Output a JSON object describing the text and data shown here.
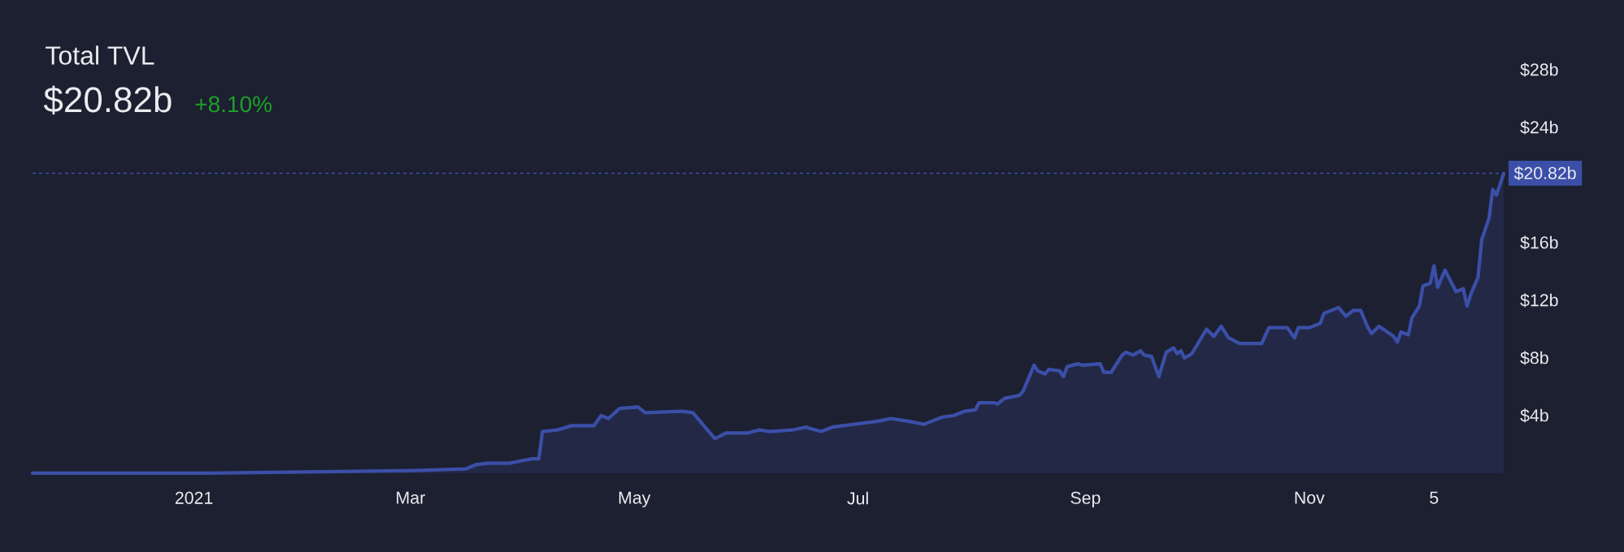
{
  "chart_data": {
    "type": "area",
    "title": "Total TVL",
    "subtitle": "$20.82b",
    "annotations": [
      "+8.10%"
    ],
    "x": [
      "2020-11-18",
      "2021-01-01",
      "2021-02-05",
      "2021-03-04",
      "2021-03-16",
      "2021-03-19",
      "2021-03-22",
      "2021-03-28",
      "2021-04-03",
      "2021-04-05",
      "2021-04-06",
      "2021-04-10",
      "2021-04-14",
      "2021-04-20",
      "2021-04-22",
      "2021-04-24",
      "2021-04-27",
      "2021-05-02",
      "2021-05-04",
      "2021-05-14",
      "2021-05-17",
      "2021-05-19",
      "2021-05-23",
      "2021-05-26",
      "2021-06-01",
      "2021-06-04",
      "2021-06-07",
      "2021-06-13",
      "2021-06-17",
      "2021-06-18",
      "2021-06-21",
      "2021-06-24",
      "2021-06-30",
      "2021-07-06",
      "2021-07-10",
      "2021-07-15",
      "2021-07-19",
      "2021-07-24",
      "2021-07-27",
      "2021-07-30",
      "2021-08-02",
      "2021-08-03",
      "2021-08-07",
      "2021-08-08",
      "2021-08-10",
      "2021-08-14",
      "2021-08-15",
      "2021-08-18",
      "2021-08-19",
      "2021-08-21",
      "2021-08-22",
      "2021-08-25",
      "2021-08-26",
      "2021-08-27",
      "2021-08-30",
      "2021-08-31",
      "2021-09-05",
      "2021-09-06",
      "2021-09-08",
      "2021-09-11",
      "2021-09-12",
      "2021-09-14",
      "2021-09-16",
      "2021-09-17",
      "2021-09-19",
      "2021-09-21",
      "2021-09-23",
      "2021-09-25",
      "2021-09-26",
      "2021-09-27",
      "2021-09-28",
      "2021-09-30",
      "2021-10-04",
      "2021-10-06",
      "2021-10-08",
      "2021-10-10",
      "2021-10-13",
      "2021-10-19",
      "2021-10-21",
      "2021-10-24",
      "2021-10-26",
      "2021-10-28",
      "2021-10-29",
      "2021-11-01",
      "2021-11-04",
      "2021-11-05",
      "2021-11-08",
      "2021-11-09",
      "2021-11-11",
      "2021-11-13",
      "2021-11-15",
      "2021-11-17",
      "2021-11-18",
      "2021-11-20",
      "2021-11-24",
      "2021-11-25",
      "2021-11-26",
      "2021-11-28",
      "2021-11-29",
      "2021-12-01",
      "2021-12-02",
      "2021-12-04",
      "2021-12-05",
      "2021-12-06",
      "2021-12-08",
      "2021-12-11",
      "2021-12-13",
      "2021-12-14",
      "2021-12-15",
      "2021-12-17",
      "2021-12-18",
      "2021-12-20",
      "2021-12-21",
      "2021-12-22",
      "2021-12-24"
    ],
    "series": [
      {
        "color": "#3b4fa8",
        "values": [
          0.0,
          0.0,
          0.1,
          0.2,
          0.3,
          0.6,
          0.7,
          0.7,
          1.0,
          1.0,
          2.9,
          3.0,
          3.3,
          3.3,
          4.0,
          3.8,
          4.5,
          4.6,
          4.2,
          4.3,
          4.2,
          3.6,
          2.4,
          2.8,
          2.8,
          3.0,
          2.9,
          3.0,
          3.2,
          3.1,
          2.9,
          3.2,
          3.4,
          3.6,
          3.8,
          3.6,
          3.4,
          3.9,
          4.0,
          4.3,
          4.4,
          4.9,
          4.9,
          4.8,
          5.2,
          5.4,
          5.7,
          7.5,
          7.1,
          6.9,
          7.2,
          7.1,
          6.7,
          7.4,
          7.6,
          7.5,
          7.6,
          7.0,
          7.0,
          8.2,
          8.4,
          8.2,
          8.5,
          8.2,
          8.1,
          6.7,
          8.4,
          8.7,
          8.3,
          8.5,
          8.0,
          8.3,
          10.0,
          9.5,
          10.2,
          9.4,
          9.0,
          9.0,
          10.1,
          10.1,
          10.1,
          9.4,
          10.1,
          10.1,
          10.4,
          11.1,
          11.4,
          11.5,
          10.9,
          11.3,
          11.3,
          10.1,
          9.7,
          10.2,
          9.5,
          9.1,
          9.8,
          9.6,
          10.8,
          11.6,
          13.0,
          13.2,
          14.4,
          12.9,
          14.1,
          12.6,
          12.8,
          11.6,
          12.4,
          13.6,
          16.2,
          17.7,
          19.7,
          19.3,
          20.8
        ]
      }
    ],
    "xlim": [
      "2020-11-18",
      "2021-12-24"
    ],
    "ylim": [
      0,
      28
    ],
    "xticks": [
      {
        "value": "2021-01-01",
        "label": "2021"
      },
      {
        "value": "2021-03-01",
        "label": "Mar"
      },
      {
        "value": "2021-05-01",
        "label": "May"
      },
      {
        "value": "2021-07-01",
        "label": "Jul"
      },
      {
        "value": "2021-09-01",
        "label": "Sep"
      },
      {
        "value": "2021-11-01",
        "label": "Nov"
      },
      {
        "value": "2021-12-05",
        "label": "5"
      }
    ],
    "yticks": [
      {
        "value": 4,
        "label": "$4b"
      },
      {
        "value": 8,
        "label": "$8b"
      },
      {
        "value": 12,
        "label": "$12b"
      },
      {
        "value": 16,
        "label": "$16b"
      },
      {
        "value": 24,
        "label": "$24b"
      },
      {
        "value": 28,
        "label": "$28b"
      }
    ],
    "ref_lines": [
      {
        "axis": "y",
        "value": 20.82,
        "label": "$20.82b",
        "color": "#3b4fa8",
        "line_style": "dotted"
      }
    ]
  }
}
